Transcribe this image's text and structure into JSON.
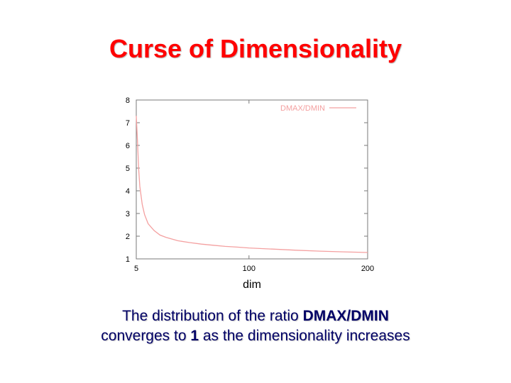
{
  "slide": {
    "title": "Curse of Dimensionality",
    "caption_line1_prefix": "The distribution of the ratio ",
    "caption_line1_bold": "DMAX/DMIN",
    "caption_line2_prefix": "converges to ",
    "caption_line2_bold": "1",
    "caption_line2_suffix": " as the dimensionality increases"
  },
  "chart_data": {
    "type": "line",
    "xlabel": "dim",
    "ylabel": "",
    "xlim": [
      5,
      200
    ],
    "ylim": [
      1,
      8
    ],
    "x_ticks": [
      "5",
      "100",
      "200"
    ],
    "x_tick_values": [
      5,
      100,
      200
    ],
    "y_ticks": [
      "1",
      "2",
      "3",
      "4",
      "5",
      "6",
      "7",
      "8"
    ],
    "y_tick_values": [
      1,
      2,
      3,
      4,
      5,
      6,
      7,
      8
    ],
    "grid": false,
    "legend": "top-right",
    "series": [
      {
        "name": "DMAX/DMIN",
        "color": "#f4a0a0",
        "x": [
          5,
          6,
          7,
          8,
          10,
          12,
          15,
          20,
          25,
          30,
          40,
          50,
          60,
          70,
          80,
          90,
          100,
          120,
          140,
          160,
          180,
          200
        ],
        "y": [
          7.3,
          6.2,
          5.0,
          4.2,
          3.4,
          2.95,
          2.55,
          2.25,
          2.05,
          1.95,
          1.8,
          1.72,
          1.65,
          1.6,
          1.55,
          1.52,
          1.48,
          1.43,
          1.38,
          1.34,
          1.31,
          1.28
        ]
      }
    ]
  }
}
